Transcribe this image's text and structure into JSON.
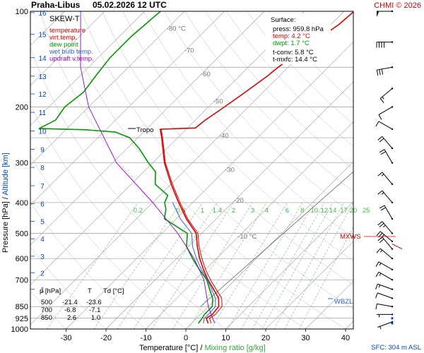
{
  "header": {
    "station": "Praha-Libus",
    "datetime": "05.02.2026 12 UTC",
    "copyright": "CHMI © 2026"
  },
  "legend": {
    "title": "SKEW-T",
    "items": [
      {
        "label": "temperature",
        "color": "#dd0000"
      },
      {
        "label": "virt.temp.",
        "color": "#dd0000"
      },
      {
        "label": "dew point",
        "color": "#009900"
      },
      {
        "label": "wet bulb temp.",
        "color": "#3366cc"
      },
      {
        "label": "updraft v.temp.",
        "color": "#9900cc"
      }
    ]
  },
  "surface": {
    "title": "Surface:",
    "lines": [
      {
        "text": "press: 959.8 hPa",
        "color": "#000000"
      },
      {
        "text": "temp: 4.2 °C",
        "color": "#dd0000"
      },
      {
        "text": "dwpt: 1.7 °C",
        "color": "#009900"
      }
    ],
    "lines2": [
      {
        "text": "t-conv: 5.8 °C",
        "color": "#000000"
      },
      {
        "text": "t-mxfc: 14.4 °C",
        "color": "#000000"
      }
    ]
  },
  "table": {
    "headers": [
      "p [hPa]",
      "T",
      "Td [°C]"
    ],
    "rows": [
      [
        "500",
        "-21.4",
        "-23.6"
      ],
      [
        "700",
        "-6.8",
        "-7.1"
      ],
      [
        "850",
        "2.6",
        "1.0"
      ]
    ]
  },
  "labels": {
    "tropo": "Tropo",
    "mxws": "MXWS",
    "wbzl": "WBZL",
    "sfc": "SFC: 304 m ASL"
  },
  "axes": {
    "xlabel": "Temperature [°C]",
    "xlabel_sep": " / ",
    "xlabel2": "Mixing ratio [g/kg]",
    "ylabel_left": "Pressure [hPa]",
    "ylabel_sep": " / ",
    "ylabel_right": "Altitude [km]",
    "x_ticks": [
      "-30",
      "-20",
      "-10",
      "0",
      "10",
      "20",
      "30",
      "40"
    ],
    "p_ticks": [
      "100",
      "200",
      "300",
      "400",
      "500",
      "600",
      "700",
      "850",
      "925",
      "1000"
    ],
    "km_ticks": [
      "16",
      "15",
      "14",
      "13",
      "12",
      "11",
      "10",
      "9",
      "8",
      "7",
      "6",
      "5",
      "4",
      "3",
      "2",
      "1"
    ],
    "mix_ticks": [
      "0.2",
      "0.6",
      "1",
      "1.4",
      "2",
      "3",
      "4",
      "6",
      "8",
      "10",
      "12",
      "14",
      "17",
      "20",
      "25"
    ],
    "isotherm_labels": [
      "-80 °C",
      "-70",
      "-60",
      "-50",
      "-40",
      "-30",
      "-20",
      "-10 °C"
    ]
  },
  "chart_data": {
    "type": "line",
    "x_axis": "temperature_C",
    "y_axis": "pressure_hPa_log",
    "xlim": [
      -37,
      43
    ],
    "ylim": [
      1000,
      100
    ],
    "grid": true,
    "series": [
      {
        "name": "temperature",
        "color": "#dd0000",
        "points": [
          [
            960,
            4.2
          ],
          [
            925,
            2.4
          ],
          [
            900,
            3.0
          ],
          [
            850,
            2.6
          ],
          [
            800,
            0.5
          ],
          [
            750,
            -3.0
          ],
          [
            700,
            -6.8
          ],
          [
            650,
            -10.5
          ],
          [
            600,
            -14.2
          ],
          [
            550,
            -17.8
          ],
          [
            500,
            -21.4
          ],
          [
            450,
            -27.5
          ],
          [
            400,
            -33.5
          ],
          [
            350,
            -40.0
          ],
          [
            300,
            -47.0
          ],
          [
            250,
            -54.0
          ],
          [
            235,
            -56.5
          ],
          [
            233,
            -48.0
          ],
          [
            220,
            -47.5
          ],
          [
            200,
            -46.0
          ],
          [
            180,
            -44.5
          ],
          [
            160,
            -43.0
          ],
          [
            150,
            -42.5
          ],
          [
            130,
            -40.5
          ],
          [
            110,
            -38.0
          ],
          [
            100,
            -37.5
          ]
        ]
      },
      {
        "name": "virt.temp.",
        "color": "#dd0000",
        "points": [
          [
            960,
            4.7
          ],
          [
            925,
            3.0
          ],
          [
            900,
            3.5
          ],
          [
            850,
            3.2
          ],
          [
            800,
            1.0
          ],
          [
            750,
            -2.6
          ],
          [
            700,
            -6.4
          ],
          [
            650,
            -10.2
          ],
          [
            600,
            -13.9
          ],
          [
            550,
            -17.6
          ],
          [
            500,
            -21.2
          ],
          [
            450,
            -27.4
          ],
          [
            400,
            -33.4
          ],
          [
            350,
            -39.9
          ],
          [
            300,
            -47.0
          ],
          [
            250,
            -54.0
          ],
          [
            235,
            -56.5
          ]
        ]
      },
      {
        "name": "dew point",
        "color": "#009900",
        "points": [
          [
            960,
            1.7
          ],
          [
            925,
            1.4
          ],
          [
            900,
            1.0
          ],
          [
            850,
            1.0
          ],
          [
            800,
            -1.0
          ],
          [
            750,
            -4.0
          ],
          [
            700,
            -7.1
          ],
          [
            650,
            -11.5
          ],
          [
            600,
            -16.0
          ],
          [
            550,
            -20.5
          ],
          [
            500,
            -23.6
          ],
          [
            450,
            -33.0
          ],
          [
            420,
            -35.0
          ],
          [
            400,
            -37.0
          ],
          [
            380,
            -38.0
          ],
          [
            350,
            -44.0
          ],
          [
            320,
            -47.0
          ],
          [
            300,
            -51.0
          ],
          [
            270,
            -57.0
          ],
          [
            250,
            -62.0
          ],
          [
            240,
            -67.0
          ],
          [
            236,
            -75.0
          ],
          [
            234,
            -87.0
          ],
          [
            220,
            -85.0
          ],
          [
            200,
            -86.0
          ],
          [
            180,
            -85.0
          ],
          [
            160,
            -86.0
          ],
          [
            140,
            -87.0
          ],
          [
            120,
            -87.0
          ],
          [
            100,
            -86.0
          ]
        ]
      },
      {
        "name": "wet bulb temp.",
        "color": "#3366cc",
        "points": [
          [
            960,
            3.0
          ],
          [
            925,
            1.9
          ],
          [
            900,
            2.0
          ],
          [
            850,
            1.8
          ],
          [
            800,
            -0.3
          ],
          [
            750,
            -3.5
          ],
          [
            700,
            -6.9
          ],
          [
            650,
            -11.0
          ],
          [
            600,
            -15.0
          ],
          [
            550,
            -19.0
          ],
          [
            500,
            -22.5
          ],
          [
            450,
            -29.0
          ],
          [
            400,
            -35.0
          ]
        ]
      },
      {
        "name": "updraft v.temp.",
        "color": "#9900cc",
        "points": [
          [
            960,
            5.8
          ],
          [
            850,
            0.0
          ],
          [
            700,
            -7.8
          ],
          [
            600,
            -15.6
          ],
          [
            500,
            -26.0
          ],
          [
            400,
            -40.0
          ],
          [
            300,
            -59.0
          ],
          [
            200,
            -80.0
          ],
          [
            150,
            -92.0
          ],
          [
            100,
            -106.0
          ]
        ]
      }
    ],
    "wind_barbs": [
      {
        "p": 100,
        "dir": 270,
        "kt": 50
      },
      {
        "p": 125,
        "dir": 270,
        "kt": 40
      },
      {
        "p": 150,
        "dir": 260,
        "kt": 30
      },
      {
        "p": 175,
        "dir": 230,
        "kt": 15
      },
      {
        "p": 200,
        "dir": 240,
        "kt": 10
      },
      {
        "p": 235,
        "dir": 300,
        "kt": 10
      },
      {
        "p": 270,
        "dir": 320,
        "kt": 20
      },
      {
        "p": 300,
        "dir": 330,
        "kt": 20
      },
      {
        "p": 350,
        "dir": 320,
        "kt": 15
      },
      {
        "p": 400,
        "dir": 320,
        "kt": 15
      },
      {
        "p": 450,
        "dir": 330,
        "kt": 20
      },
      {
        "p": 500,
        "dir": 320,
        "kt": 25
      },
      {
        "p": 530,
        "dir": 310,
        "kt": 30
      },
      {
        "p": 560,
        "dir": 320,
        "kt": 20
      },
      {
        "p": 600,
        "dir": 310,
        "kt": 15
      },
      {
        "p": 650,
        "dir": 300,
        "kt": 15
      },
      {
        "p": 700,
        "dir": 300,
        "kt": 15
      },
      {
        "p": 750,
        "dir": 290,
        "kt": 15
      },
      {
        "p": 800,
        "dir": 290,
        "kt": 10
      },
      {
        "p": 850,
        "dir": 280,
        "kt": 10
      },
      {
        "p": 900,
        "dir": 270,
        "kt": 5
      },
      {
        "p": 950,
        "dir": 250,
        "kt": 5
      }
    ]
  }
}
